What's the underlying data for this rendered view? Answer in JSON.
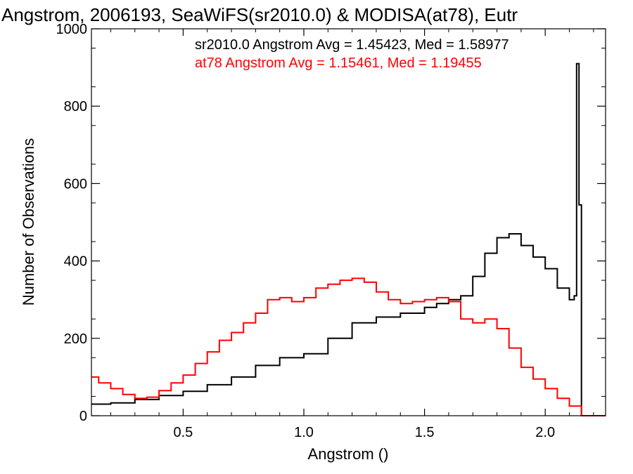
{
  "chart_data": {
    "type": "line",
    "subtype": "step-histogram",
    "title": "Angstrom, 2006193, SeaWiFS(sr2010.0) & MODISA(at78), Eutr",
    "xlabel": "Angstrom ()",
    "ylabel": "Number of Observations",
    "xlim": [
      0.12,
      2.25
    ],
    "ylim": [
      0,
      1000
    ],
    "x_ticks": [
      0.5,
      1.0,
      1.5,
      2.0
    ],
    "x_tick_labels": [
      "0.5",
      "1.0",
      "1.5",
      "2.0"
    ],
    "y_ticks": [
      0,
      200,
      400,
      600,
      800,
      1000
    ],
    "y_tick_labels": [
      "0",
      "200",
      "400",
      "600",
      "800",
      "1000"
    ],
    "grid": false,
    "legend_placement": "top-right",
    "annotations": [
      {
        "text": "sr2010.0 Angstrom Avg = 1.45423, Med = 1.58977",
        "color": "#000000"
      },
      {
        "text": "at78 Angstrom Avg = 1.15461, Med = 1.19455",
        "color": "#ff0000"
      }
    ],
    "series": [
      {
        "color": "#000000",
        "x": [
          0.12,
          0.2,
          0.3,
          0.4,
          0.5,
          0.6,
          0.7,
          0.8,
          0.9,
          1.0,
          1.1,
          1.2,
          1.3,
          1.4,
          1.5,
          1.55,
          1.6,
          1.65,
          1.7,
          1.75,
          1.8,
          1.85,
          1.9,
          1.95,
          2.0,
          2.05,
          2.1,
          2.12,
          2.13,
          2.14,
          2.15,
          2.16,
          2.25
        ],
        "y": [
          30,
          33,
          42,
          52,
          63,
          80,
          100,
          130,
          150,
          160,
          200,
          240,
          255,
          265,
          280,
          290,
          300,
          310,
          360,
          420,
          460,
          470,
          440,
          410,
          380,
          330,
          300,
          310,
          910,
          545,
          0,
          0,
          0
        ]
      },
      {
        "color": "#ff0000",
        "x": [
          0.12,
          0.15,
          0.2,
          0.25,
          0.3,
          0.35,
          0.4,
          0.45,
          0.5,
          0.55,
          0.6,
          0.65,
          0.7,
          0.75,
          0.8,
          0.85,
          0.9,
          0.95,
          1.0,
          1.05,
          1.1,
          1.15,
          1.2,
          1.25,
          1.3,
          1.35,
          1.4,
          1.45,
          1.5,
          1.55,
          1.6,
          1.65,
          1.7,
          1.75,
          1.8,
          1.85,
          1.9,
          1.95,
          2.0,
          2.05,
          2.1,
          2.15,
          2.25
        ],
        "y": [
          100,
          85,
          70,
          55,
          45,
          48,
          65,
          85,
          105,
          135,
          165,
          195,
          215,
          240,
          265,
          300,
          305,
          295,
          305,
          330,
          340,
          350,
          355,
          345,
          320,
          300,
          290,
          295,
          300,
          305,
          295,
          250,
          240,
          250,
          225,
          175,
          125,
          95,
          70,
          45,
          25,
          0,
          0
        ]
      }
    ]
  }
}
